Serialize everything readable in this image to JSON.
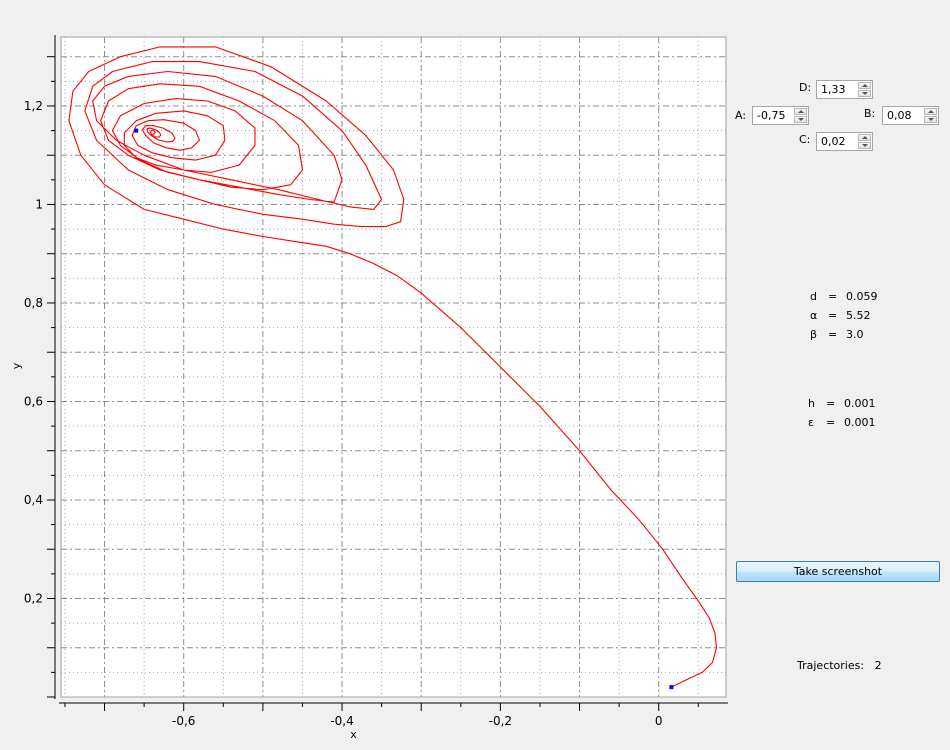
{
  "plot": {
    "xlabel": "x",
    "ylabel": "y",
    "xlim": [
      -0.755,
      0.085
    ],
    "ylim": [
      0.0,
      1.34
    ],
    "x_ticks": [
      {
        "value": -0.6,
        "label": "-0,6"
      },
      {
        "value": -0.4,
        "label": "-0,4"
      },
      {
        "value": -0.2,
        "label": "-0,2"
      },
      {
        "value": 0.0,
        "label": "0"
      }
    ],
    "y_ticks": [
      {
        "value": 0.2,
        "label": "0,2"
      },
      {
        "value": 0.4,
        "label": "0,4"
      },
      {
        "value": 0.6,
        "label": "0,6"
      },
      {
        "value": 0.8,
        "label": "0,8"
      },
      {
        "value": 1.0,
        "label": "1"
      },
      {
        "value": 1.2,
        "label": "1,2"
      }
    ],
    "grid": true,
    "colors": {
      "trajectory": "#ff0000",
      "start_point": "#0000ff",
      "grid": "#808080",
      "plot_background": "#ffffff"
    }
  },
  "chart_data": {
    "type": "line",
    "xlabel": "x",
    "ylabel": "y",
    "xlim": [
      -0.755,
      0.085
    ],
    "ylim": [
      0.0,
      1.34
    ],
    "grid": true,
    "series": [
      {
        "x": [
          0.016,
          0.035,
          0.055,
          0.068,
          0.073,
          0.071,
          0.064,
          0.05,
          0.03,
          0.005,
          -0.025,
          -0.06,
          -0.1,
          -0.15,
          -0.2,
          -0.25,
          -0.3,
          -0.33,
          -0.36,
          -0.39,
          -0.42,
          -0.46,
          -0.5,
          -0.55,
          -0.6,
          -0.65,
          -0.7,
          -0.73,
          -0.745,
          -0.74,
          -0.72,
          -0.68,
          -0.63,
          -0.56,
          -0.49,
          -0.42,
          -0.37,
          -0.335,
          -0.322,
          -0.326,
          -0.345,
          -0.375,
          -0.41,
          -0.45,
          -0.5,
          -0.56,
          -0.62,
          -0.67,
          -0.71,
          -0.725,
          -0.715,
          -0.69,
          -0.64,
          -0.58,
          -0.51,
          -0.45,
          -0.4,
          -0.37,
          -0.35,
          -0.36,
          -0.39,
          -0.43,
          -0.48,
          -0.54,
          -0.6,
          -0.65,
          -0.685,
          -0.71,
          -0.715,
          -0.7,
          -0.67,
          -0.62,
          -0.56,
          -0.5,
          -0.45,
          -0.41,
          -0.4,
          -0.41,
          -0.44,
          -0.48,
          -0.53,
          -0.58,
          -0.63,
          -0.67,
          -0.695,
          -0.705,
          -0.695,
          -0.67,
          -0.63,
          -0.58,
          -0.53,
          -0.485,
          -0.455,
          -0.45,
          -0.465,
          -0.5,
          -0.54,
          -0.58,
          -0.62,
          -0.655,
          -0.68,
          -0.69,
          -0.68,
          -0.65,
          -0.61,
          -0.57,
          -0.535,
          -0.51,
          -0.51,
          -0.53,
          -0.565,
          -0.6,
          -0.635,
          -0.66,
          -0.675,
          -0.675,
          -0.66,
          -0.635,
          -0.6,
          -0.57,
          -0.55,
          -0.548,
          -0.56,
          -0.585,
          -0.615,
          -0.64,
          -0.658,
          -0.665,
          -0.66,
          -0.645,
          -0.625,
          -0.6,
          -0.585,
          -0.58,
          -0.59,
          -0.605,
          -0.622,
          -0.638,
          -0.648,
          -0.652,
          -0.648,
          -0.638,
          -0.626,
          -0.615,
          -0.611,
          -0.614,
          -0.622,
          -0.632,
          -0.641,
          -0.646,
          -0.646,
          -0.642,
          -0.636,
          -0.631,
          -0.629,
          -0.631,
          -0.636,
          -0.64,
          -0.642,
          -0.641,
          -0.639,
          -0.637,
          -0.636,
          -0.637,
          -0.639
        ],
        "y": [
          0.02,
          0.035,
          0.05,
          0.07,
          0.1,
          0.13,
          0.16,
          0.195,
          0.24,
          0.3,
          0.36,
          0.42,
          0.5,
          0.59,
          0.67,
          0.75,
          0.82,
          0.855,
          0.88,
          0.9,
          0.915,
          0.925,
          0.935,
          0.95,
          0.97,
          0.99,
          1.04,
          1.1,
          1.17,
          1.23,
          1.27,
          1.3,
          1.32,
          1.32,
          1.28,
          1.21,
          1.14,
          1.07,
          1.01,
          0.965,
          0.955,
          0.955,
          0.96,
          0.97,
          0.98,
          1.0,
          1.03,
          1.07,
          1.13,
          1.19,
          1.24,
          1.27,
          1.29,
          1.29,
          1.27,
          1.22,
          1.15,
          1.08,
          1.01,
          0.99,
          0.995,
          1.01,
          1.03,
          1.05,
          1.07,
          1.1,
          1.13,
          1.17,
          1.21,
          1.24,
          1.26,
          1.27,
          1.26,
          1.22,
          1.17,
          1.1,
          1.05,
          1.005,
          1.01,
          1.02,
          1.035,
          1.05,
          1.07,
          1.1,
          1.13,
          1.17,
          1.21,
          1.235,
          1.245,
          1.24,
          1.21,
          1.17,
          1.12,
          1.07,
          1.04,
          1.03,
          1.035,
          1.05,
          1.065,
          1.09,
          1.12,
          1.15,
          1.18,
          1.205,
          1.215,
          1.21,
          1.19,
          1.155,
          1.12,
          1.08,
          1.065,
          1.07,
          1.08,
          1.095,
          1.12,
          1.145,
          1.17,
          1.185,
          1.19,
          1.18,
          1.16,
          1.13,
          1.1,
          1.09,
          1.095,
          1.105,
          1.12,
          1.14,
          1.16,
          1.17,
          1.172,
          1.165,
          1.15,
          1.13,
          1.115,
          1.11,
          1.115,
          1.125,
          1.14,
          1.152,
          1.16,
          1.16,
          1.155,
          1.145,
          1.135,
          1.128,
          1.127,
          1.131,
          1.14,
          1.148,
          1.154,
          1.155,
          1.152,
          1.147,
          1.141,
          1.137,
          1.137,
          1.141,
          1.146,
          1.15,
          1.151,
          1.149,
          1.146,
          1.143,
          1.142
        ]
      }
    ],
    "markers": [
      {
        "x": 0.016,
        "y": 0.02
      },
      {
        "x": -0.66,
        "y": 1.15
      }
    ]
  },
  "params": {
    "D": {
      "label": "D:",
      "value": "1,33"
    },
    "A": {
      "label": "A:",
      "value": "-0,75"
    },
    "B": {
      "label": "B:",
      "value": "0,08"
    },
    "C": {
      "label": "C:",
      "value": "0,02"
    }
  },
  "info": {
    "d": {
      "symbol": "d",
      "eq": "=",
      "value": "0.059"
    },
    "alpha": {
      "symbol": "α",
      "eq": "=",
      "value": "5.52"
    },
    "beta": {
      "symbol": "β",
      "eq": "=",
      "value": "3.0"
    },
    "h": {
      "symbol": "h",
      "eq": "=",
      "value": "0.001"
    },
    "eps": {
      "symbol": "ε",
      "eq": "=",
      "value": "0.001"
    }
  },
  "screenshot_button": {
    "label": "Take screenshot"
  },
  "trajectories": {
    "label": "Trajectories:",
    "count": "2"
  }
}
